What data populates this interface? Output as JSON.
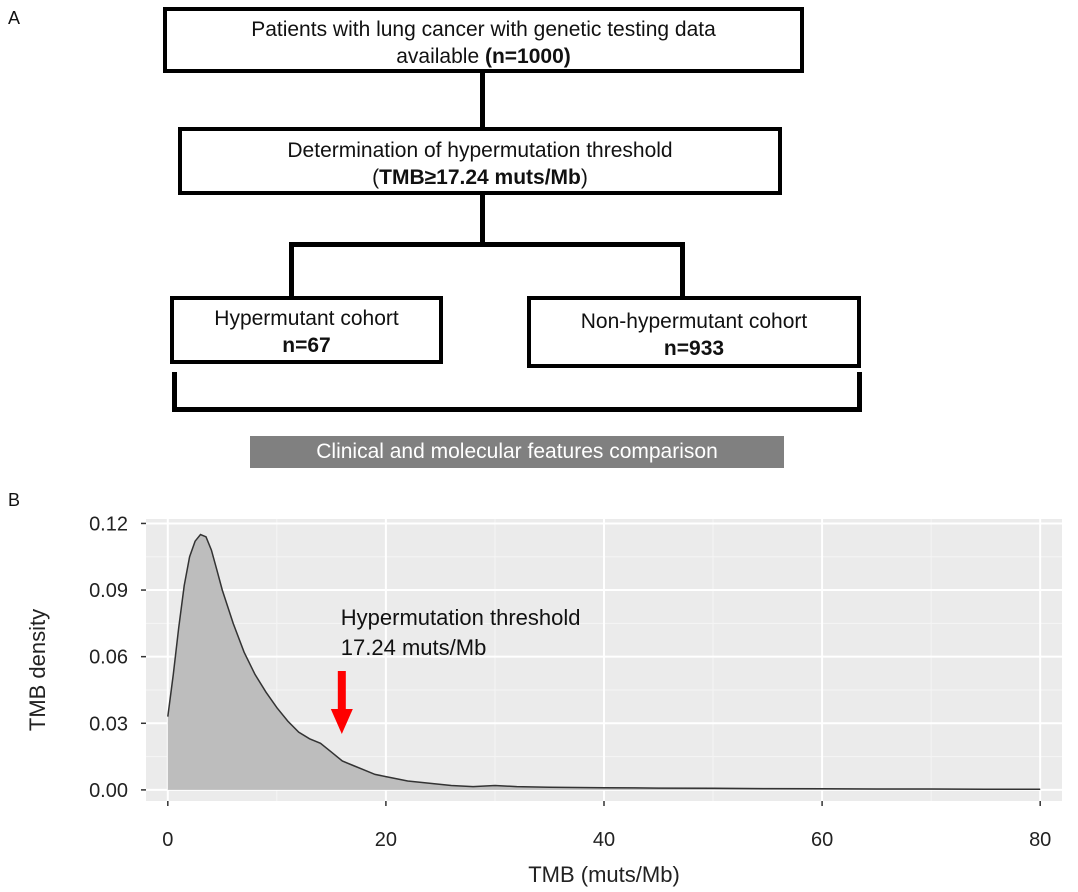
{
  "panel_a": {
    "label": "A",
    "box_top": {
      "line1": "Patients with lung cancer with genetic testing data",
      "line2_prefix": "available ",
      "line2_bold": "(n=1000)"
    },
    "box_mid": {
      "line1": "Determination of hypermutation threshold",
      "line2_open": "(",
      "line2_bold": "TMB≥17.24 muts/Mb",
      "line2_close": ")"
    },
    "box_left": {
      "line1": "Hypermutant cohort",
      "line2_bold": "n=67"
    },
    "box_right": {
      "line1": "Non-hypermutant cohort",
      "line2_bold": "n=933"
    },
    "comparison_label": "Clinical and molecular features comparison"
  },
  "panel_b": {
    "label": "B"
  },
  "chart_data": {
    "type": "area",
    "title": "",
    "xlabel": "TMB (muts/Mb)",
    "ylabel": "TMB density",
    "xlim": [
      -2,
      82
    ],
    "ylim": [
      -0.005,
      0.122
    ],
    "x_ticks": [
      0,
      20,
      40,
      60,
      80
    ],
    "y_ticks": [
      0.0,
      0.03,
      0.06,
      0.09,
      0.12
    ],
    "x_tick_labels": [
      "0",
      "20",
      "40",
      "60",
      "80"
    ],
    "y_tick_labels": [
      "0.00",
      "0.03",
      "0.06",
      "0.09",
      "0.12"
    ],
    "grid": true,
    "background": "#ebebeb",
    "fill_color": "#bdbdbd",
    "line_color": "#333333",
    "x": [
      0,
      0.5,
      1,
      1.5,
      2,
      2.5,
      3,
      3.5,
      4,
      4.5,
      5,
      6,
      7,
      8,
      9,
      10,
      11,
      12,
      13,
      14,
      15,
      16,
      17,
      18,
      19,
      20,
      22,
      24,
      26,
      28,
      30,
      32,
      35,
      40,
      45,
      50,
      55,
      60,
      65,
      70,
      75,
      80
    ],
    "y": [
      0.033,
      0.052,
      0.073,
      0.092,
      0.105,
      0.112,
      0.115,
      0.114,
      0.108,
      0.099,
      0.09,
      0.075,
      0.062,
      0.052,
      0.044,
      0.037,
      0.031,
      0.026,
      0.023,
      0.021,
      0.017,
      0.013,
      0.011,
      0.009,
      0.007,
      0.006,
      0.004,
      0.003,
      0.002,
      0.0015,
      0.002,
      0.0015,
      0.0012,
      0.001,
      0.0008,
      0.0007,
      0.0006,
      0.0005,
      0.0004,
      0.0004,
      0.0003,
      0.0003
    ],
    "annotation": {
      "line1": "Hypermutation threshold",
      "line2": "17.24 muts/Mb",
      "arrow_x": 17.24,
      "arrow_color": "#ff0000"
    }
  }
}
